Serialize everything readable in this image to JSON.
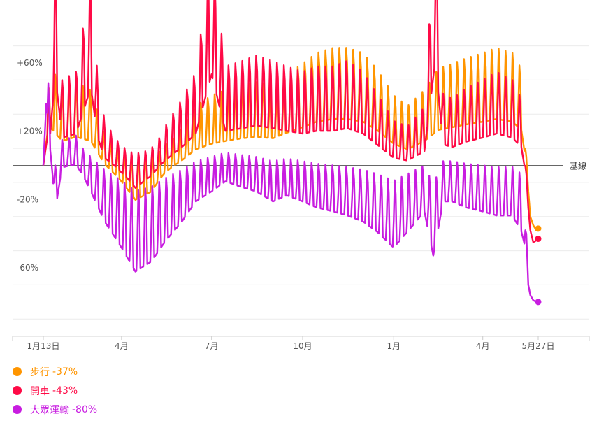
{
  "chart_data": {
    "type": "line",
    "baseline_label": "基線",
    "ylim": [
      -100,
      80
    ],
    "y_ticks": [
      {
        "value": 60,
        "label": "+60%"
      },
      {
        "value": 20,
        "label": "+20%"
      },
      {
        "value": -20,
        "label": "-20%"
      },
      {
        "value": -60,
        "label": "-60%"
      }
    ],
    "x_ticks": [
      {
        "date": "2020-01-13",
        "label": "1月13日"
      },
      {
        "date": "2020-04-01",
        "label": "4月"
      },
      {
        "date": "2020-07-01",
        "label": "7月"
      },
      {
        "date": "2020-10-01",
        "label": "10月"
      },
      {
        "date": "2021-01-01",
        "label": "1月"
      },
      {
        "date": "2021-04-01",
        "label": "4月"
      },
      {
        "date": "2021-05-27",
        "label": "5月27日"
      }
    ],
    "xlim": [
      "2020-01-13",
      "2021-06-30"
    ],
    "grid": true,
    "legend_position": "bottom-left",
    "series": [
      {
        "name": "步行",
        "end_value_label": "-37%",
        "color": "#ff9500",
        "points": [
          [
            "2020-01-13",
            0
          ],
          [
            "2020-01-20",
            32
          ],
          [
            "2020-02-01",
            22
          ],
          [
            "2020-02-15",
            25
          ],
          [
            "2020-03-01",
            22
          ],
          [
            "2020-03-15",
            5
          ],
          [
            "2020-04-01",
            -5
          ],
          [
            "2020-04-15",
            -14
          ],
          [
            "2020-05-01",
            -10
          ],
          [
            "2020-05-15",
            0
          ],
          [
            "2020-06-01",
            8
          ],
          [
            "2020-06-15",
            16
          ],
          [
            "2020-07-01",
            20
          ],
          [
            "2020-07-15",
            22
          ],
          [
            "2020-08-01",
            24
          ],
          [
            "2020-08-15",
            25
          ],
          [
            "2020-09-01",
            24
          ],
          [
            "2020-09-15",
            28
          ],
          [
            "2020-10-01",
            32
          ],
          [
            "2020-10-15",
            36
          ],
          [
            "2020-11-01",
            38
          ],
          [
            "2020-11-15",
            38
          ],
          [
            "2020-12-01",
            36
          ],
          [
            "2020-12-15",
            30
          ],
          [
            "2021-01-01",
            20
          ],
          [
            "2021-01-15",
            16
          ],
          [
            "2021-02-01",
            22
          ],
          [
            "2021-02-15",
            30
          ],
          [
            "2021-03-01",
            32
          ],
          [
            "2021-03-15",
            34
          ],
          [
            "2021-04-01",
            36
          ],
          [
            "2021-04-15",
            38
          ],
          [
            "2021-05-01",
            36
          ],
          [
            "2021-05-10",
            30
          ],
          [
            "2021-05-15",
            5
          ],
          [
            "2021-05-17",
            -15
          ],
          [
            "2021-05-19",
            -30
          ],
          [
            "2021-05-22",
            -35
          ],
          [
            "2021-05-25",
            -38
          ],
          [
            "2021-05-27",
            -37
          ]
        ]
      },
      {
        "name": "開車",
        "end_value_label": "-43%",
        "color": "#ff0a46",
        "points": [
          [
            "2020-01-13",
            0
          ],
          [
            "2020-01-20",
            28
          ],
          [
            "2020-01-25",
            72
          ],
          [
            "2020-02-01",
            25
          ],
          [
            "2020-02-15",
            28
          ],
          [
            "2020-03-01",
            62
          ],
          [
            "2020-03-08",
            25
          ],
          [
            "2020-03-15",
            10
          ],
          [
            "2020-04-01",
            0
          ],
          [
            "2020-04-15",
            -8
          ],
          [
            "2020-05-01",
            -2
          ],
          [
            "2020-05-15",
            8
          ],
          [
            "2020-06-01",
            18
          ],
          [
            "2020-06-15",
            28
          ],
          [
            "2020-07-01",
            72
          ],
          [
            "2020-07-15",
            30
          ],
          [
            "2020-08-01",
            32
          ],
          [
            "2020-08-15",
            34
          ],
          [
            "2020-09-01",
            32
          ],
          [
            "2020-09-15",
            30
          ],
          [
            "2020-10-01",
            28
          ],
          [
            "2020-10-15",
            30
          ],
          [
            "2020-11-01",
            30
          ],
          [
            "2020-11-15",
            32
          ],
          [
            "2020-12-01",
            28
          ],
          [
            "2020-12-15",
            20
          ],
          [
            "2021-01-01",
            10
          ],
          [
            "2021-01-15",
            8
          ],
          [
            "2021-02-01",
            15
          ],
          [
            "2021-02-12",
            82
          ],
          [
            "2021-02-20",
            20
          ],
          [
            "2021-03-01",
            18
          ],
          [
            "2021-03-15",
            22
          ],
          [
            "2021-04-01",
            25
          ],
          [
            "2021-04-15",
            28
          ],
          [
            "2021-05-01",
            25
          ],
          [
            "2021-05-10",
            18
          ],
          [
            "2021-05-15",
            -5
          ],
          [
            "2021-05-17",
            -25
          ],
          [
            "2021-05-19",
            -38
          ],
          [
            "2021-05-22",
            -45
          ],
          [
            "2021-05-25",
            -44
          ],
          [
            "2021-05-27",
            -43
          ]
        ]
      },
      {
        "name": "大眾運輸",
        "end_value_label": "-80%",
        "color": "#c81de0",
        "points": [
          [
            "2020-01-13",
            0
          ],
          [
            "2020-01-16",
            36
          ],
          [
            "2020-01-20",
            15
          ],
          [
            "2020-01-25",
            -20
          ],
          [
            "2020-02-01",
            3
          ],
          [
            "2020-02-15",
            5
          ],
          [
            "2020-03-01",
            -10
          ],
          [
            "2020-03-15",
            -25
          ],
          [
            "2020-04-01",
            -38
          ],
          [
            "2020-04-15",
            -50
          ],
          [
            "2020-05-01",
            -45
          ],
          [
            "2020-05-15",
            -35
          ],
          [
            "2020-06-01",
            -25
          ],
          [
            "2020-06-15",
            -15
          ],
          [
            "2020-07-01",
            -10
          ],
          [
            "2020-07-15",
            -5
          ],
          [
            "2020-08-01",
            -8
          ],
          [
            "2020-08-15",
            -10
          ],
          [
            "2020-09-01",
            -15
          ],
          [
            "2020-09-15",
            -12
          ],
          [
            "2020-10-01",
            -15
          ],
          [
            "2020-10-15",
            -18
          ],
          [
            "2020-11-01",
            -20
          ],
          [
            "2020-11-15",
            -22
          ],
          [
            "2020-12-01",
            -25
          ],
          [
            "2020-12-15",
            -30
          ],
          [
            "2021-01-01",
            -38
          ],
          [
            "2021-01-15",
            -30
          ],
          [
            "2021-02-01",
            -20
          ],
          [
            "2021-02-10",
            -42
          ],
          [
            "2021-02-20",
            -15
          ],
          [
            "2021-03-01",
            -15
          ],
          [
            "2021-03-15",
            -18
          ],
          [
            "2021-04-01",
            -20
          ],
          [
            "2021-04-15",
            -22
          ],
          [
            "2021-05-01",
            -22
          ],
          [
            "2021-05-10",
            -30
          ],
          [
            "2021-05-15",
            -40
          ],
          [
            "2021-05-17",
            -70
          ],
          [
            "2021-05-19",
            -76
          ],
          [
            "2021-05-22",
            -79
          ],
          [
            "2021-05-25",
            -80
          ],
          [
            "2021-05-27",
            -80
          ]
        ]
      }
    ]
  }
}
